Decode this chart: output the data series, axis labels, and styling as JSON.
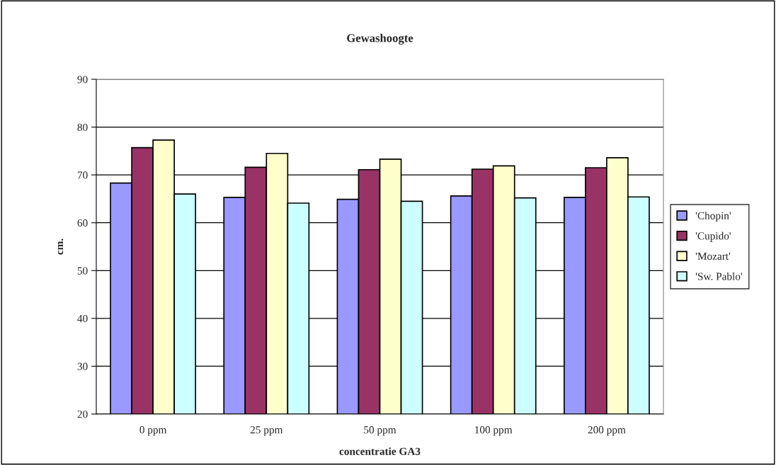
{
  "chart_data": {
    "type": "bar",
    "title": "Gewashoogte",
    "xlabel": "concentratie GA3",
    "ylabel": "cm.",
    "categories": [
      "0 ppm",
      "25 ppm",
      "50 ppm",
      "100 ppm",
      "200 ppm"
    ],
    "series": [
      {
        "name": "'Chopin'",
        "color": "#9999ff",
        "values": [
          68.3,
          65.3,
          64.9,
          65.6,
          65.3
        ]
      },
      {
        "name": "'Cupido'",
        "color": "#993366",
        "values": [
          75.7,
          71.6,
          71.1,
          71.2,
          71.5
        ]
      },
      {
        "name": "'Mozart'",
        "color": "#ffffcc",
        "values": [
          77.3,
          74.5,
          73.3,
          71.9,
          73.6
        ]
      },
      {
        "name": "'Sw. Pablo'",
        "color": "#ccffff",
        "values": [
          66.0,
          64.1,
          64.5,
          65.2,
          65.4
        ]
      }
    ],
    "ylim": [
      20,
      90
    ],
    "yticks": [
      20,
      30,
      40,
      50,
      60,
      70,
      80,
      90
    ],
    "grid": "y",
    "legend": "right"
  }
}
